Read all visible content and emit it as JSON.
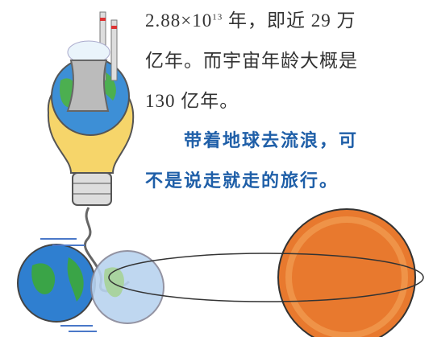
{
  "paragraphs": [
    {
      "lines": [
        {
          "base": "2.88×10",
          "sup": "13",
          "rest": "年，即近 29 万"
        },
        "亿年。而宇宙年龄大概是",
        "130 亿年。"
      ]
    },
    {
      "lines": [
        "带着地球去流浪，可",
        "不是说走就走的旅行。"
      ]
    }
  ]
}
